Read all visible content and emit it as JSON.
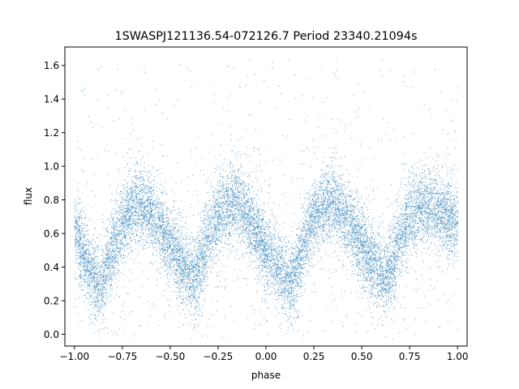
{
  "chart_data": {
    "type": "scatter",
    "title": "1SWASPJ121136.54-072126.7 Period 23340.21094s",
    "xlabel": "phase",
    "ylabel": "flux",
    "xlim": [
      -1.05,
      1.05
    ],
    "ylim": [
      -0.07,
      1.71
    ],
    "xticks": [
      "−1.00",
      "−0.75",
      "−0.50",
      "−0.25",
      "0.00",
      "0.25",
      "0.50",
      "0.75",
      "1.00"
    ],
    "xtick_values": [
      -1.0,
      -0.75,
      -0.5,
      -0.25,
      0.0,
      0.25,
      0.5,
      0.75,
      1.0
    ],
    "yticks": [
      "0.0",
      "0.2",
      "0.4",
      "0.6",
      "0.8",
      "1.0",
      "1.2",
      "1.4",
      "1.6"
    ],
    "ytick_values": [
      0.0,
      0.2,
      0.4,
      0.6,
      0.8,
      1.0,
      1.2,
      1.4,
      1.6
    ],
    "grid": false,
    "point_color": "#1f77b4",
    "series": [
      {
        "x": [
          -1.0,
          -0.95,
          -0.9,
          -0.875,
          -0.85,
          -0.8,
          -0.75,
          -0.7,
          -0.65,
          -0.6,
          -0.55,
          -0.5,
          -0.45,
          -0.4,
          -0.375,
          -0.35,
          -0.3,
          -0.25,
          -0.2,
          -0.15,
          -0.1,
          -0.05,
          0.0,
          0.05,
          0.1,
          0.125,
          0.15,
          0.2,
          0.25,
          0.3,
          0.35,
          0.4,
          0.45,
          0.5,
          0.55,
          0.6,
          0.625,
          0.65,
          0.7,
          0.75,
          0.8,
          0.85,
          0.9,
          0.95,
          1.0
        ],
        "y": [
          0.64,
          0.45,
          0.34,
          0.3,
          0.34,
          0.5,
          0.66,
          0.76,
          0.78,
          0.73,
          0.64,
          0.52,
          0.44,
          0.36,
          0.34,
          0.4,
          0.58,
          0.7,
          0.77,
          0.79,
          0.72,
          0.6,
          0.5,
          0.42,
          0.34,
          0.31,
          0.35,
          0.55,
          0.7,
          0.77,
          0.78,
          0.72,
          0.63,
          0.53,
          0.44,
          0.36,
          0.34,
          0.39,
          0.57,
          0.7,
          0.76,
          0.77,
          0.73,
          0.7,
          0.66
        ]
      }
    ]
  }
}
